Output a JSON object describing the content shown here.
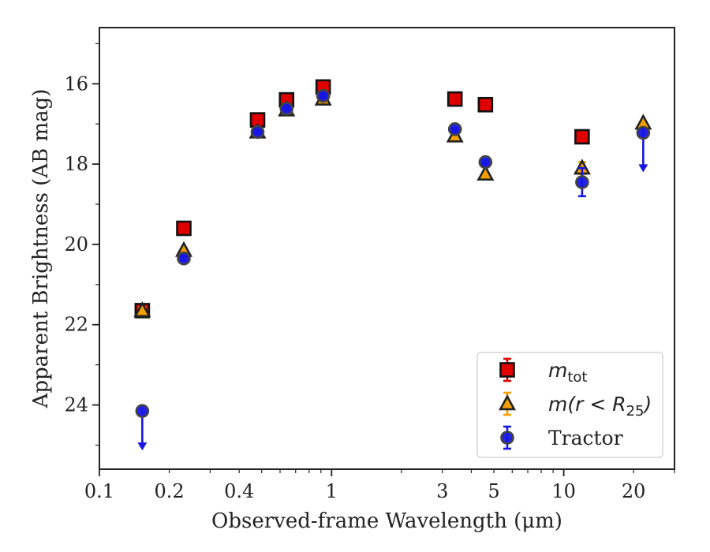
{
  "chart_data": {
    "type": "scatter",
    "xlabel": "Observed-frame Wavelength (μm)",
    "ylabel": "Apparent Brightness (AB mag)",
    "xscale": "log",
    "xlim": [
      0.1,
      30
    ],
    "ylim": [
      25.6,
      14.6
    ],
    "y_inverted": true,
    "grid": false,
    "legend_position": "lower-right",
    "x_ticks": [
      {
        "value": 0.1,
        "label": "0.1"
      },
      {
        "value": 0.2,
        "label": "0.2"
      },
      {
        "value": 0.4,
        "label": "0.4"
      },
      {
        "value": 1,
        "label": "1"
      },
      {
        "value": 3,
        "label": "3"
      },
      {
        "value": 5,
        "label": "5"
      },
      {
        "value": 10,
        "label": "10"
      },
      {
        "value": 20,
        "label": "20"
      }
    ],
    "y_ticks": [
      {
        "value": 16,
        "label": "16"
      },
      {
        "value": 18,
        "label": "18"
      },
      {
        "value": 20,
        "label": "20"
      },
      {
        "value": 22,
        "label": "22"
      },
      {
        "value": 24,
        "label": "24"
      }
    ],
    "series": [
      {
        "name": "m_tot",
        "legend_label": "m",
        "legend_sub": "tot",
        "marker": "square",
        "color": "#e00000",
        "edge": "#111111",
        "points": [
          {
            "x": 0.153,
            "y": 21.65,
            "yerr": 0.08
          },
          {
            "x": 0.231,
            "y": 19.6,
            "yerr": 0.05
          },
          {
            "x": 0.48,
            "y": 16.9,
            "yerr": 0.03
          },
          {
            "x": 0.64,
            "y": 16.4,
            "yerr": 0.03
          },
          {
            "x": 0.92,
            "y": 16.08,
            "yerr": 0.03
          },
          {
            "x": 3.4,
            "y": 16.38,
            "yerr": 0.03
          },
          {
            "x": 4.6,
            "y": 16.52,
            "yerr": 0.03
          },
          {
            "x": 12.0,
            "y": 17.32,
            "yerr": 0.05
          }
        ]
      },
      {
        "name": "m(r < R25)",
        "legend_label": "m(r < R",
        "legend_sub": "25",
        "legend_tail": ")",
        "marker": "triangle",
        "color": "#f5a000",
        "edge": "#222222",
        "points": [
          {
            "x": 0.153,
            "y": 21.65,
            "yerr": 0.08
          },
          {
            "x": 0.231,
            "y": 20.15,
            "yerr": 0.05
          },
          {
            "x": 0.48,
            "y": 17.2,
            "yerr": 0.03
          },
          {
            "x": 0.64,
            "y": 16.65,
            "yerr": 0.03
          },
          {
            "x": 0.92,
            "y": 16.38,
            "yerr": 0.03
          },
          {
            "x": 3.4,
            "y": 17.3,
            "yerr": 0.03
          },
          {
            "x": 4.6,
            "y": 18.25,
            "yerr": 0.05
          },
          {
            "x": 12.0,
            "y": 18.1,
            "yerr": 0.15
          },
          {
            "x": 22.0,
            "y": 16.98,
            "yerr": 0
          }
        ]
      },
      {
        "name": "Tractor",
        "legend_label": "Tractor",
        "marker": "circle",
        "color": "#1515e6",
        "edge": "#444444",
        "points": [
          {
            "x": 0.153,
            "y": 24.15,
            "yerr": 0,
            "upper_limit": true
          },
          {
            "x": 0.231,
            "y": 20.35,
            "yerr": 0.05
          },
          {
            "x": 0.48,
            "y": 17.2,
            "yerr": 0.03
          },
          {
            "x": 0.64,
            "y": 16.62,
            "yerr": 0.03
          },
          {
            "x": 0.92,
            "y": 16.3,
            "yerr": 0.03
          },
          {
            "x": 3.4,
            "y": 17.13,
            "yerr": 0.03
          },
          {
            "x": 4.6,
            "y": 17.95,
            "yerr": 0.05
          },
          {
            "x": 12.0,
            "y": 18.45,
            "yerr": 0.35
          },
          {
            "x": 22.0,
            "y": 17.22,
            "yerr": 0,
            "upper_limit": true
          }
        ]
      }
    ]
  }
}
